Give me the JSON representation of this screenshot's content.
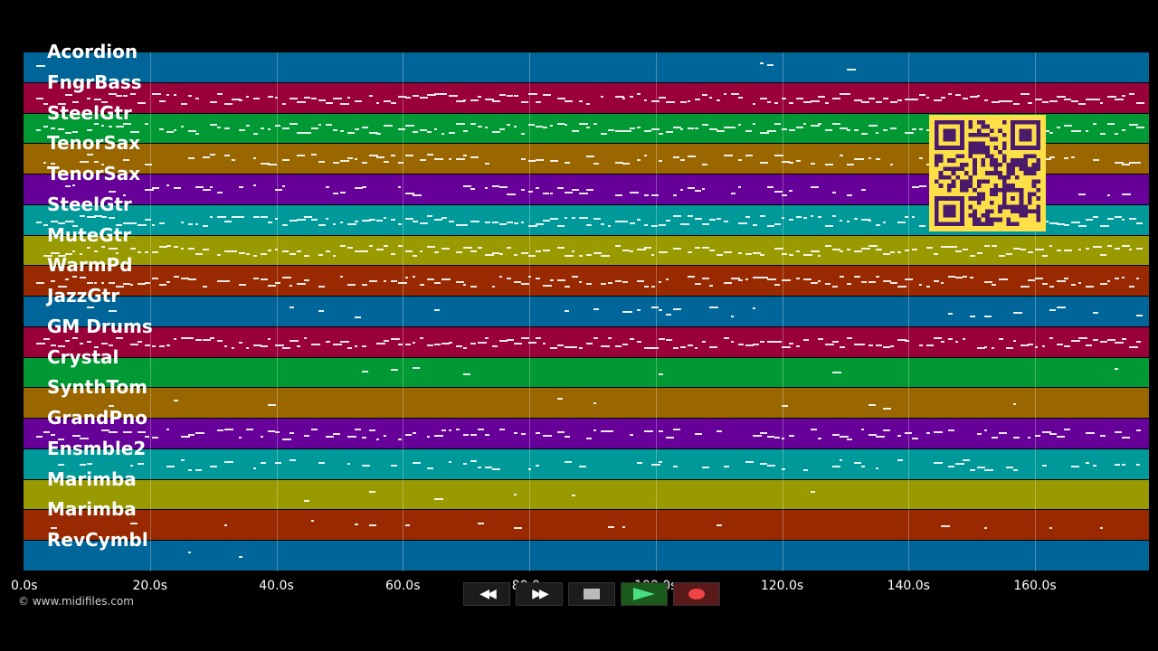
{
  "tracks": [
    {
      "name": "Acordion",
      "color": "#006699"
    },
    {
      "name": "FngrBass",
      "color": "#99003a"
    },
    {
      "name": "SteelGtr",
      "color": "#009933"
    },
    {
      "name": "TenorSax",
      "color": "#996600"
    },
    {
      "name": "TenorSax",
      "color": "#660099"
    },
    {
      "name": "SteelGtr",
      "color": "#00999a"
    },
    {
      "name": "MuteGtr",
      "color": "#999900"
    },
    {
      "name": "WarmPd",
      "color": "#992900"
    },
    {
      "name": "JazzGtr",
      "color": "#006699"
    },
    {
      "name": "GM Drums",
      "color": "#99003a"
    },
    {
      "name": "Crystal",
      "color": "#009933"
    },
    {
      "name": "SynthTom",
      "color": "#996600"
    },
    {
      "name": "GrandPno",
      "color": "#660099"
    },
    {
      "name": "Ensmble2",
      "color": "#00999a"
    },
    {
      "name": "Marimba",
      "color": "#999900"
    },
    {
      "name": "Marimba",
      "color": "#992900"
    },
    {
      "name": "RevCymbl",
      "color": "#006699"
    }
  ],
  "time_axis": {
    "max_seconds": 178,
    "ticks": [
      "0.0s",
      "20.0s",
      "40.0s",
      "60.0s",
      "80.0s",
      "100.0s",
      "120.0s",
      "140.0s",
      "160.0s"
    ]
  },
  "copyright": "© www.midifiles.com",
  "controls": [
    {
      "name": "rewind-button",
      "icon": "rewind-icon",
      "glyph": "◀◀"
    },
    {
      "name": "fast-forward-button",
      "icon": "fast-forward-icon",
      "glyph": "▶▶"
    },
    {
      "name": "stop-button",
      "icon": "stop-icon",
      "glyph": ""
    },
    {
      "name": "play-button",
      "icon": "play-icon",
      "glyph": ""
    },
    {
      "name": "record-button",
      "icon": "record-icon",
      "glyph": ""
    }
  ],
  "qr_code": {
    "color_background": "#fde047",
    "color_modules": "#4a1a6b"
  }
}
